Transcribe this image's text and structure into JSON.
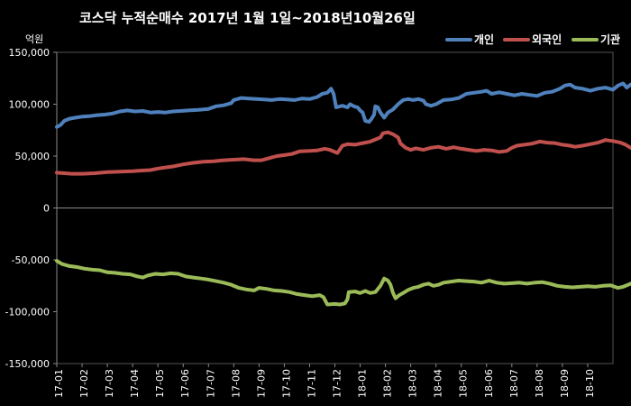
{
  "chart_data": {
    "type": "line",
    "title": "코스닥  누적순매수 2017년 1월 1일~2018년10월26일",
    "ylabel": "억원",
    "xlabel": "",
    "ylim": [
      -150000,
      150000
    ],
    "yticks": [
      "150,000",
      "100,000",
      "50,000",
      "0",
      "-50,000",
      "-100,000",
      "-150,000"
    ],
    "yticks_values": [
      150000,
      100000,
      50000,
      0,
      -50000,
      -100000,
      -150000
    ],
    "categories": [
      "17-01",
      "17-02",
      "17-03",
      "17-04",
      "17-05",
      "17-06",
      "17-07",
      "17-08",
      "17-09",
      "17-10",
      "17-11",
      "17-12",
      "18-01",
      "18-02",
      "18-03",
      "18-04",
      "18-05",
      "18-06",
      "18-07",
      "18-08",
      "18-09",
      "18-10"
    ],
    "legend_position": "top-right",
    "grid": false,
    "series": [
      {
        "name": "개인",
        "color": "#4F81BD",
        "points": [
          [
            0.0,
            78000
          ],
          [
            0.15,
            80000
          ],
          [
            0.3,
            84000
          ],
          [
            0.5,
            86000
          ],
          [
            0.75,
            87000
          ],
          [
            1.0,
            88000
          ],
          [
            1.3,
            88500
          ],
          [
            1.6,
            89500
          ],
          [
            1.9,
            90000
          ],
          [
            2.2,
            91000
          ],
          [
            2.5,
            93000
          ],
          [
            2.8,
            94000
          ],
          [
            3.1,
            93000
          ],
          [
            3.4,
            93500
          ],
          [
            3.7,
            92000
          ],
          [
            4.0,
            92500
          ],
          [
            4.3,
            92000
          ],
          [
            4.6,
            93000
          ],
          [
            4.9,
            93500
          ],
          [
            5.2,
            94000
          ],
          [
            5.6,
            94500
          ],
          [
            6.0,
            95500
          ],
          [
            6.3,
            98000
          ],
          [
            6.6,
            99000
          ],
          [
            6.9,
            101000
          ],
          [
            7.0,
            104000
          ],
          [
            7.3,
            106000
          ],
          [
            7.6,
            105500
          ],
          [
            7.9,
            105000
          ],
          [
            8.2,
            104500
          ],
          [
            8.5,
            104000
          ],
          [
            8.8,
            105000
          ],
          [
            9.1,
            104500
          ],
          [
            9.4,
            104000
          ],
          [
            9.7,
            105500
          ],
          [
            10.0,
            105000
          ],
          [
            10.3,
            107000
          ],
          [
            10.5,
            110000
          ],
          [
            10.7,
            111000
          ],
          [
            10.85,
            115000
          ],
          [
            10.95,
            110000
          ],
          [
            11.05,
            97000
          ],
          [
            11.3,
            98500
          ],
          [
            11.5,
            97000
          ],
          [
            11.6,
            100000
          ],
          [
            11.75,
            98000
          ],
          [
            11.9,
            97000
          ],
          [
            12.0,
            94000
          ],
          [
            12.1,
            92000
          ],
          [
            12.2,
            84000
          ],
          [
            12.35,
            83000
          ],
          [
            12.45,
            86000
          ],
          [
            12.55,
            90000
          ],
          [
            12.6,
            98000
          ],
          [
            12.7,
            97000
          ],
          [
            12.8,
            92000
          ],
          [
            12.95,
            87000
          ],
          [
            13.1,
            92000
          ],
          [
            13.3,
            95000
          ],
          [
            13.5,
            100000
          ],
          [
            13.7,
            104000
          ],
          [
            13.9,
            105000
          ],
          [
            14.1,
            104000
          ],
          [
            14.3,
            105000
          ],
          [
            14.5,
            103500
          ],
          [
            14.6,
            100000
          ],
          [
            14.8,
            98500
          ],
          [
            15.0,
            100000
          ],
          [
            15.3,
            104000
          ],
          [
            15.6,
            104500
          ],
          [
            15.9,
            106000
          ],
          [
            16.2,
            110000
          ],
          [
            16.5,
            111000
          ],
          [
            16.8,
            112000
          ],
          [
            17.0,
            113000
          ],
          [
            17.2,
            110000
          ],
          [
            17.5,
            111500
          ],
          [
            17.8,
            110000
          ],
          [
            18.1,
            108500
          ],
          [
            18.4,
            110000
          ],
          [
            18.7,
            109000
          ],
          [
            19.0,
            108000
          ],
          [
            19.3,
            111000
          ],
          [
            19.6,
            112000
          ],
          [
            19.9,
            115000
          ],
          [
            20.1,
            118000
          ],
          [
            20.3,
            119000
          ],
          [
            20.5,
            116000
          ],
          [
            20.8,
            115000
          ],
          [
            21.1,
            113000
          ],
          [
            21.4,
            115000
          ],
          [
            21.7,
            116000
          ],
          [
            22.0,
            114000
          ],
          [
            22.2,
            118000
          ],
          [
            22.4,
            120000
          ],
          [
            22.55,
            116000
          ],
          [
            22.7,
            119000
          ],
          [
            22.85,
            117000
          ],
          [
            22.95,
            116000
          ]
        ]
      },
      {
        "name": "외국인",
        "color": "#C0504D",
        "points": [
          [
            0.0,
            34000
          ],
          [
            0.3,
            33500
          ],
          [
            0.6,
            33000
          ],
          [
            1.0,
            33000
          ],
          [
            1.5,
            33500
          ],
          [
            2.0,
            34500
          ],
          [
            2.5,
            35000
          ],
          [
            3.0,
            35500
          ],
          [
            3.3,
            36000
          ],
          [
            3.7,
            36500
          ],
          [
            4.0,
            38000
          ],
          [
            4.3,
            39000
          ],
          [
            4.6,
            40000
          ],
          [
            5.0,
            42000
          ],
          [
            5.4,
            43500
          ],
          [
            5.8,
            44500
          ],
          [
            6.2,
            45000
          ],
          [
            6.6,
            46000
          ],
          [
            7.0,
            46500
          ],
          [
            7.4,
            47000
          ],
          [
            7.8,
            46000
          ],
          [
            8.1,
            46000
          ],
          [
            8.4,
            48000
          ],
          [
            8.7,
            50000
          ],
          [
            9.0,
            51000
          ],
          [
            9.3,
            52000
          ],
          [
            9.6,
            54500
          ],
          [
            10.0,
            55000
          ],
          [
            10.3,
            55500
          ],
          [
            10.6,
            57000
          ],
          [
            10.8,
            56000
          ],
          [
            11.0,
            54000
          ],
          [
            11.1,
            53000
          ],
          [
            11.3,
            60000
          ],
          [
            11.5,
            61500
          ],
          [
            11.8,
            61000
          ],
          [
            12.0,
            62000
          ],
          [
            12.2,
            63000
          ],
          [
            12.4,
            64000
          ],
          [
            12.6,
            66000
          ],
          [
            12.8,
            68000
          ],
          [
            12.9,
            72000
          ],
          [
            13.1,
            73000
          ],
          [
            13.3,
            71000
          ],
          [
            13.5,
            68000
          ],
          [
            13.6,
            62000
          ],
          [
            13.8,
            58000
          ],
          [
            14.0,
            56000
          ],
          [
            14.2,
            57500
          ],
          [
            14.5,
            56000
          ],
          [
            14.8,
            58000
          ],
          [
            15.1,
            59000
          ],
          [
            15.4,
            57000
          ],
          [
            15.7,
            58500
          ],
          [
            16.0,
            57000
          ],
          [
            16.3,
            56000
          ],
          [
            16.6,
            55000
          ],
          [
            16.9,
            56000
          ],
          [
            17.2,
            55500
          ],
          [
            17.5,
            54000
          ],
          [
            17.8,
            55000
          ],
          [
            18.0,
            58000
          ],
          [
            18.2,
            60000
          ],
          [
            18.5,
            61000
          ],
          [
            18.8,
            62000
          ],
          [
            19.1,
            64000
          ],
          [
            19.4,
            63000
          ],
          [
            19.7,
            62500
          ],
          [
            20.0,
            61000
          ],
          [
            20.3,
            60000
          ],
          [
            20.5,
            59000
          ],
          [
            20.8,
            60000
          ],
          [
            21.1,
            61500
          ],
          [
            21.4,
            63000
          ],
          [
            21.7,
            65500
          ],
          [
            22.0,
            64500
          ],
          [
            22.3,
            63000
          ],
          [
            22.5,
            61000
          ],
          [
            22.7,
            58000
          ],
          [
            22.85,
            57000
          ],
          [
            22.95,
            56500
          ]
        ]
      },
      {
        "name": "기관",
        "color": "#9BBB59",
        "points": [
          [
            0.0,
            -51000
          ],
          [
            0.2,
            -54000
          ],
          [
            0.5,
            -56000
          ],
          [
            0.8,
            -57000
          ],
          [
            1.1,
            -58500
          ],
          [
            1.4,
            -59500
          ],
          [
            1.7,
            -60000
          ],
          [
            2.0,
            -62000
          ],
          [
            2.3,
            -62500
          ],
          [
            2.6,
            -63500
          ],
          [
            2.9,
            -64000
          ],
          [
            3.2,
            -66000
          ],
          [
            3.4,
            -67000
          ],
          [
            3.6,
            -65000
          ],
          [
            3.9,
            -63500
          ],
          [
            4.2,
            -64000
          ],
          [
            4.5,
            -63000
          ],
          [
            4.8,
            -63500
          ],
          [
            5.1,
            -66000
          ],
          [
            5.4,
            -67000
          ],
          [
            5.7,
            -68000
          ],
          [
            6.0,
            -69000
          ],
          [
            6.3,
            -70500
          ],
          [
            6.6,
            -72000
          ],
          [
            6.9,
            -74000
          ],
          [
            7.2,
            -77000
          ],
          [
            7.5,
            -78500
          ],
          [
            7.8,
            -79500
          ],
          [
            8.0,
            -77000
          ],
          [
            8.3,
            -78000
          ],
          [
            8.6,
            -79500
          ],
          [
            8.9,
            -80000
          ],
          [
            9.2,
            -81000
          ],
          [
            9.5,
            -83000
          ],
          [
            9.8,
            -84000
          ],
          [
            10.1,
            -85000
          ],
          [
            10.4,
            -84000
          ],
          [
            10.55,
            -86000
          ],
          [
            10.7,
            -93000
          ],
          [
            11.0,
            -92500
          ],
          [
            11.2,
            -93000
          ],
          [
            11.4,
            -92000
          ],
          [
            11.5,
            -88000
          ],
          [
            11.55,
            -81000
          ],
          [
            11.8,
            -80500
          ],
          [
            12.0,
            -82000
          ],
          [
            12.2,
            -80000
          ],
          [
            12.4,
            -82000
          ],
          [
            12.6,
            -81000
          ],
          [
            12.8,
            -75000
          ],
          [
            12.95,
            -68000
          ],
          [
            13.1,
            -70000
          ],
          [
            13.2,
            -74000
          ],
          [
            13.3,
            -82000
          ],
          [
            13.4,
            -87000
          ],
          [
            13.55,
            -84000
          ],
          [
            13.7,
            -82000
          ],
          [
            13.9,
            -79000
          ],
          [
            14.1,
            -77000
          ],
          [
            14.3,
            -76000
          ],
          [
            14.5,
            -74000
          ],
          [
            14.7,
            -73000
          ],
          [
            14.9,
            -75000
          ],
          [
            15.1,
            -74000
          ],
          [
            15.3,
            -72000
          ],
          [
            15.6,
            -71000
          ],
          [
            15.9,
            -70000
          ],
          [
            16.2,
            -70500
          ],
          [
            16.5,
            -71000
          ],
          [
            16.8,
            -72000
          ],
          [
            17.1,
            -70000
          ],
          [
            17.4,
            -72000
          ],
          [
            17.7,
            -73000
          ],
          [
            18.0,
            -72500
          ],
          [
            18.3,
            -72000
          ],
          [
            18.6,
            -73000
          ],
          [
            18.9,
            -72000
          ],
          [
            19.2,
            -71500
          ],
          [
            19.5,
            -73000
          ],
          [
            19.8,
            -75000
          ],
          [
            20.1,
            -76000
          ],
          [
            20.4,
            -76500
          ],
          [
            20.7,
            -76000
          ],
          [
            21.0,
            -75500
          ],
          [
            21.3,
            -76000
          ],
          [
            21.6,
            -75000
          ],
          [
            21.9,
            -74500
          ],
          [
            22.2,
            -77000
          ],
          [
            22.4,
            -76000
          ],
          [
            22.6,
            -74000
          ],
          [
            22.8,
            -72000
          ],
          [
            22.95,
            -71000
          ]
        ]
      }
    ]
  }
}
